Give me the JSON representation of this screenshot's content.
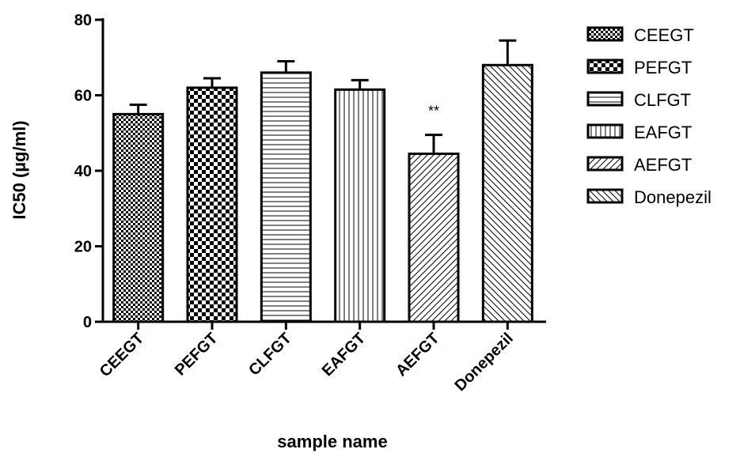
{
  "chart_data": {
    "type": "bar",
    "title": "",
    "xlabel": "sample name",
    "ylabel": "IC50 (µg/ml)",
    "ylim": [
      0,
      80
    ],
    "yticks": [
      "0",
      "20",
      "40",
      "60",
      "80"
    ],
    "grid": false,
    "legend_position": "right",
    "categories": [
      "CEEGT",
      "PEFGT",
      "CLFGT",
      "EAFGT",
      "AEFGT",
      "Donepezil"
    ],
    "values": [
      55,
      62,
      66,
      61.5,
      44.5,
      68
    ],
    "errors": [
      2.5,
      2.5,
      3,
      2.5,
      5,
      6.5
    ],
    "patterns": [
      "small-check",
      "checker",
      "horizontal",
      "vertical",
      "diagonal-up",
      "diagonal-down"
    ],
    "annotations": [
      {
        "category": "AEFGT",
        "text": "**"
      }
    ],
    "legend": [
      "CEEGT",
      "PEFGT",
      "CLFGT",
      "EAFGT",
      "AEFGT",
      "Donepezil"
    ],
    "colors": {
      "stroke": "#000000",
      "fill": "#ffffff"
    }
  }
}
